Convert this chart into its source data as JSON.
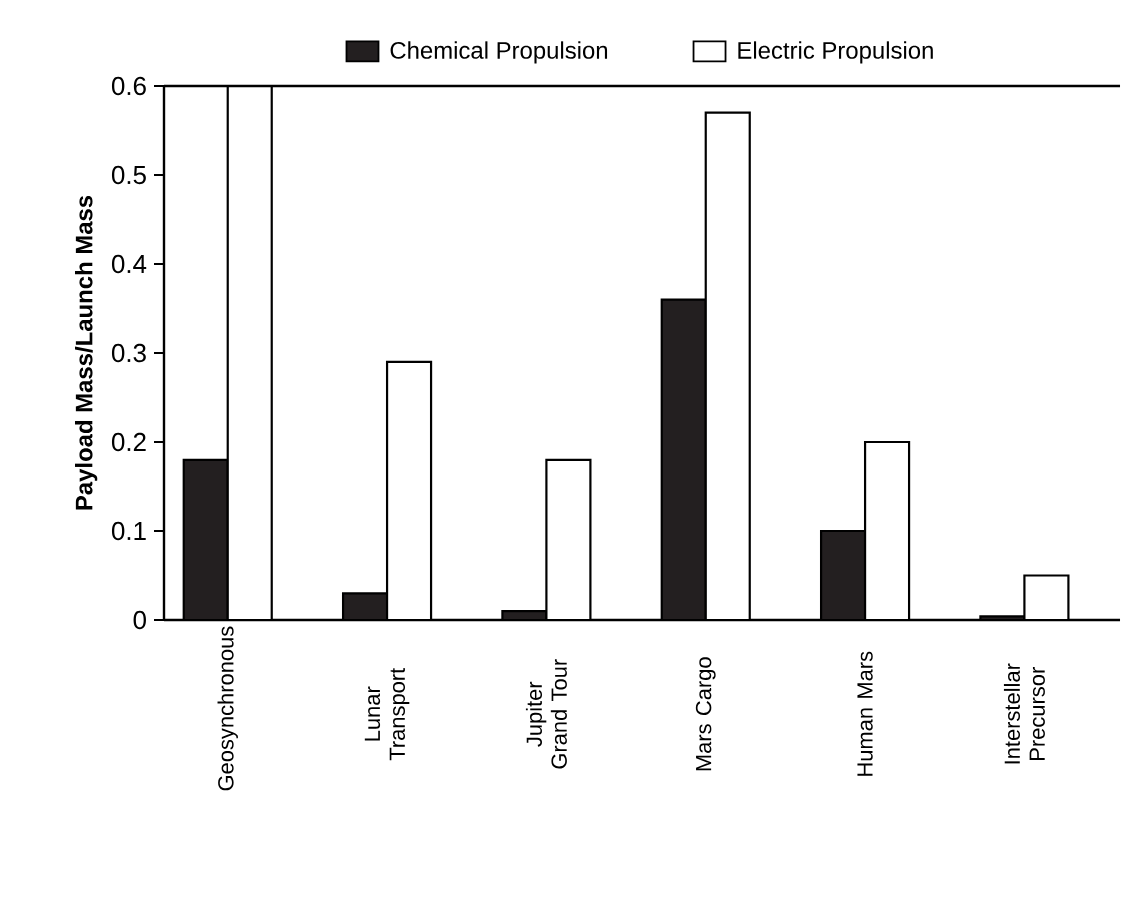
{
  "chart_data": {
    "type": "bar",
    "ylabel": "Payload Mass/Launch Mass",
    "categories": [
      "Geosynchronous",
      "Lunar Transport",
      "Jupiter Grand Tour",
      "Mars Cargo",
      "Human Mars",
      "Interstellar Precursor"
    ],
    "series": [
      {
        "name": "Chemical Propulsion",
        "color": "#231f20",
        "values": [
          0.18,
          0.03,
          0.01,
          0.36,
          0.1,
          0.004
        ]
      },
      {
        "name": "Electric Propulsion",
        "color": "#ffffff",
        "values": [
          0.6,
          0.29,
          0.18,
          0.57,
          0.2,
          0.05
        ]
      }
    ],
    "ylim": [
      0,
      0.6
    ],
    "yticks": [
      0,
      0.1,
      0.2,
      0.3,
      0.4,
      0.5,
      0.6
    ],
    "grid": false,
    "legend": "top"
  }
}
